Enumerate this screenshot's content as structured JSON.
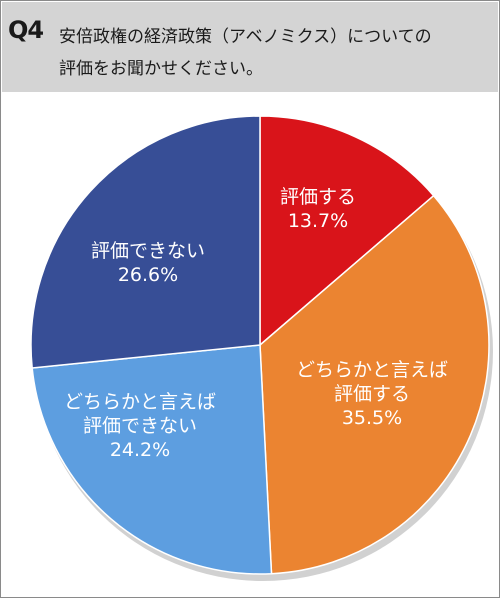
{
  "question": {
    "number": "Q4",
    "line1": "安倍政権の経済政策（アベノミクス）についての",
    "line2": "評価をお聞かせください。"
  },
  "chart_data": {
    "type": "pie",
    "start": "12 o'clock",
    "direction": "clockwise",
    "slices": [
      {
        "label": [
          "評価する"
        ],
        "value": 13.7,
        "display": "13.7%",
        "color": "#d9141a"
      },
      {
        "label": [
          "どちらかと言えば",
          "評価する"
        ],
        "value": 35.5,
        "display": "35.5%",
        "color": "#eb8431"
      },
      {
        "label": [
          "どちらかと言えば",
          "評価できない"
        ],
        "value": 24.2,
        "display": "24.2%",
        "color": "#5d9ee0"
      },
      {
        "label": [
          "評価できない"
        ],
        "value": 26.6,
        "display": "26.6%",
        "color": "#374e96"
      }
    ]
  }
}
